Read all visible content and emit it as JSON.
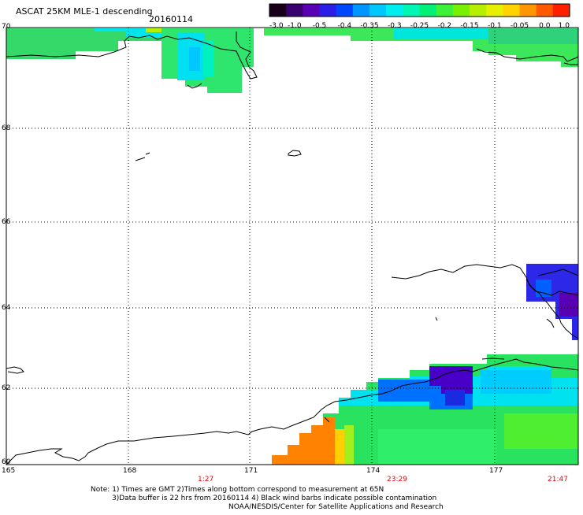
{
  "header": {
    "title": "ASCAT 25KM MLE-1 descending",
    "date": "20160114"
  },
  "colorbar": {
    "labels": [
      "-3.0",
      "-1.0",
      "-0.5",
      "-0.4",
      "-0.35",
      "-0.3",
      "-0.25",
      "-0.2",
      "-0.15",
      "-0.1",
      "-0.05",
      "0.0",
      "1.0"
    ],
    "colors": [
      "#180018",
      "#3a0070",
      "#5a00b4",
      "#2c1ee6",
      "#0046ff",
      "#0096ff",
      "#00c8ff",
      "#00eef0",
      "#00f6b4",
      "#00f078",
      "#3cf03c",
      "#78f000",
      "#b4f000",
      "#e6f000",
      "#ffd200",
      "#ff9600",
      "#ff5a00",
      "#ff1e00"
    ]
  },
  "axes": {
    "lat_labels": [
      "70",
      "68",
      "66",
      "64",
      "62",
      "60"
    ],
    "lon_labels": [
      "165",
      "168",
      "171",
      "174",
      "177"
    ]
  },
  "time_labels": [
    "1:27",
    "23:29",
    "21:47"
  ],
  "notes": {
    "line1": "Note: 1) Times are GMT 2)Times along bottom correspond to measurement at 65N",
    "line2": "3)Data buffer is 22 hrs from 20160114 4) Black wind barbs indicate possible contamination",
    "line3": "NOAA/NESDIS/Center for Satellite Applications and Research"
  },
  "palette": {
    "green": "#3cf03c",
    "cyan": "#00ecf0",
    "blue": "#0050ff",
    "purple": "#4a00c8",
    "orange": "#ff8c00",
    "red_text": "#e8000b"
  }
}
